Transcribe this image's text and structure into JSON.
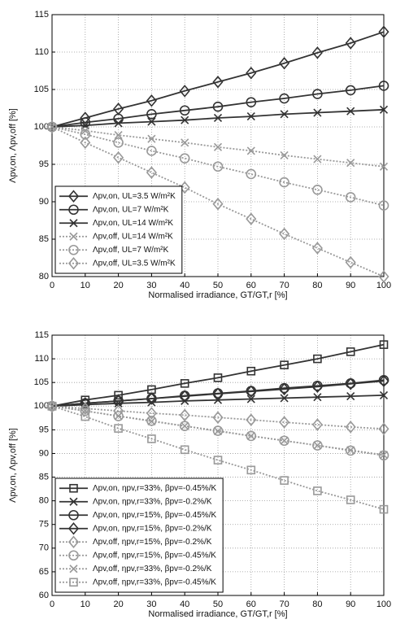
{
  "chart_data": [
    {
      "type": "line",
      "xlabel": "Normalised irradiance, GT/GT,r [%]",
      "ylabel": "Λpv,on, Λpv,off [%]",
      "x": [
        0,
        10,
        20,
        30,
        40,
        50,
        60,
        70,
        80,
        90,
        100
      ],
      "xlim": [
        0,
        100
      ],
      "xticks": [
        0,
        10,
        20,
        30,
        40,
        50,
        60,
        70,
        80,
        90,
        100
      ],
      "ylim": [
        80,
        115
      ],
      "yticks": [
        80,
        85,
        90,
        95,
        100,
        105,
        110,
        115
      ],
      "grid": true,
      "legend": "lower left",
      "series": [
        {
          "name": "Λpv,on, UL=3.5 W/m²K",
          "color": "#333333",
          "marker": "diamond",
          "linestyle": "solid",
          "values": [
            100,
            101.2,
            102.4,
            103.5,
            104.8,
            106,
            107.2,
            108.5,
            109.9,
            111.2,
            112.7
          ]
        },
        {
          "name": "Λpv,on, UL=7 W/m²K",
          "color": "#333333",
          "marker": "circle",
          "linestyle": "solid",
          "values": [
            100,
            100.6,
            101.1,
            101.7,
            102.2,
            102.7,
            103.3,
            103.8,
            104.4,
            104.9,
            105.5
          ]
        },
        {
          "name": "Λpv,on, UL=14 W/m²K",
          "color": "#333333",
          "marker": "x",
          "linestyle": "solid",
          "values": [
            100,
            100.2,
            100.5,
            100.7,
            100.9,
            101.2,
            101.4,
            101.7,
            101.9,
            102.1,
            102.3
          ]
        },
        {
          "name": "Λpv,off, UL=14 W/m²K",
          "color": "#999999",
          "marker": "x",
          "linestyle": "dotted",
          "values": [
            100,
            99.5,
            98.9,
            98.4,
            97.9,
            97.3,
            96.8,
            96.2,
            95.7,
            95.2,
            94.7
          ]
        },
        {
          "name": "Λpv,off, UL=7 W/m²K",
          "color": "#999999",
          "marker": "circle",
          "linestyle": "dotted",
          "values": [
            100,
            99,
            97.9,
            96.8,
            95.8,
            94.7,
            93.7,
            92.6,
            91.6,
            90.6,
            89.5
          ]
        },
        {
          "name": "Λpv,off, UL=3.5 W/m²K",
          "color": "#999999",
          "marker": "diamond",
          "linestyle": "dotted",
          "values": [
            100,
            97.9,
            95.9,
            93.9,
            91.9,
            89.7,
            87.7,
            85.7,
            83.8,
            81.9,
            80
          ]
        }
      ]
    },
    {
      "type": "line",
      "xlabel": "Normalised irradiance, GT/GT,r [%]",
      "ylabel": "Λpv,on, Λpv,off [%]",
      "x": [
        0,
        10,
        20,
        30,
        40,
        50,
        60,
        70,
        80,
        90,
        100
      ],
      "xlim": [
        0,
        100
      ],
      "xticks": [
        0,
        10,
        20,
        30,
        40,
        50,
        60,
        70,
        80,
        90,
        100
      ],
      "ylim": [
        60,
        115
      ],
      "yticks": [
        60,
        65,
        70,
        75,
        80,
        85,
        90,
        95,
        100,
        105,
        110,
        115
      ],
      "grid": true,
      "legend": "lower left",
      "series": [
        {
          "name": "Λpv,on, ηpv,r=33%, βpv=-0.45%/K",
          "color": "#333333",
          "marker": "square",
          "linestyle": "solid",
          "values": [
            100,
            101.3,
            102.3,
            103.5,
            104.8,
            106,
            107.4,
            108.7,
            110,
            111.5,
            113
          ]
        },
        {
          "name": "Λpv,on, ηpv,r=33%, βpv=-0.2%/K",
          "color": "#333333",
          "marker": "x",
          "linestyle": "solid",
          "values": [
            100,
            100.3,
            100.6,
            100.8,
            101.1,
            101.3,
            101.5,
            101.7,
            101.9,
            102.1,
            102.3
          ]
        },
        {
          "name": "Λpv,on, ηpv,r=15%, βpv=-0.45%/K",
          "color": "#333333",
          "marker": "circle",
          "linestyle": "solid",
          "values": [
            100,
            100.6,
            101.1,
            101.6,
            102.2,
            102.7,
            103.2,
            103.8,
            104.3,
            104.8,
            105.5
          ]
        },
        {
          "name": "Λpv,on, ηpv,r=15%, βpv=-0.2%/K",
          "color": "#333333",
          "marker": "diamond",
          "linestyle": "solid",
          "values": [
            100,
            100.6,
            101.1,
            101.6,
            102.1,
            102.6,
            103.1,
            103.6,
            104.1,
            104.7,
            105.3
          ]
        },
        {
          "name": "Λpv,off, ηpv,r=15%, βpv=-0.2%/K",
          "color": "#999999",
          "marker": "diamond",
          "linestyle": "dotted",
          "values": [
            100,
            99.5,
            99,
            98.5,
            98.1,
            97.6,
            97.1,
            96.6,
            96.1,
            95.6,
            95.2
          ]
        },
        {
          "name": "Λpv,off, ηpv,r=15%, βpv=-0.45%/K",
          "color": "#999999",
          "marker": "circle",
          "linestyle": "dotted",
          "values": [
            100,
            99,
            97.9,
            96.9,
            95.8,
            94.8,
            93.7,
            92.7,
            91.7,
            90.6,
            89.6
          ]
        },
        {
          "name": "Λpv,off, ηpv,r=33%, βpv=-0.2%/K",
          "color": "#999999",
          "marker": "x",
          "linestyle": "dotted",
          "values": [
            100,
            99,
            97.9,
            96.8,
            95.8,
            94.7,
            93.7,
            92.7,
            91.7,
            90.7,
            89.7
          ]
        },
        {
          "name": "Λpv,off, ηpv,r=33%, βpv=-0.45%/K",
          "color": "#999999",
          "marker": "square",
          "linestyle": "dotted",
          "values": [
            100,
            97.8,
            95.3,
            93.1,
            90.8,
            88.6,
            86.5,
            84.3,
            82.1,
            80.2,
            78.2
          ]
        }
      ]
    }
  ]
}
